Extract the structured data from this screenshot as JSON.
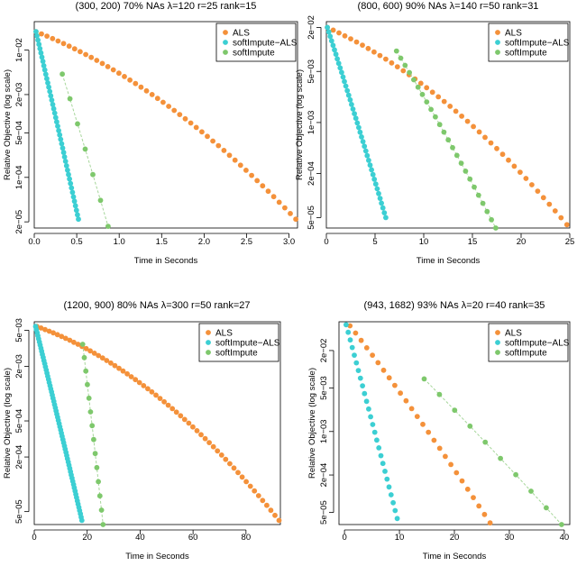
{
  "colors": {
    "ALS": "#f4913a",
    "softImpute-ALS": "#3ccfd3",
    "softImpute": "#7ec86c",
    "softImpute_line": "#a6d69a"
  },
  "chart_data": [
    {
      "type": "scatter",
      "title": "(300, 200)   70% NAs   λ=120   r=25   rank=15",
      "xlabel": "Time in Seconds",
      "ylabel": "Relative Objective (log scale)",
      "xlim": [
        0,
        3.1
      ],
      "ylim": [
        1.6e-05,
        0.028
      ],
      "yscale": "log",
      "xticks": [
        0.0,
        0.5,
        1.0,
        1.5,
        2.0,
        2.5,
        3.0
      ],
      "xtick_labels": [
        "0.0",
        "0.5",
        "1.0",
        "1.5",
        "2.0",
        "2.5",
        "3.0"
      ],
      "yticks": [
        0.01,
        0.002,
        0.0005,
        0.0001,
        2e-05
      ],
      "ytick_labels": [
        "1e−02",
        "2e−03",
        "5e−04",
        "1e−04",
        "2e−05"
      ],
      "legend": [
        "ALS",
        "softImpute−ALS",
        "softImpute"
      ],
      "legend_position": "top-right",
      "series": [
        {
          "name": "ALS",
          "color_key": "ALS",
          "x_start": 0.02,
          "x_end": 3.08,
          "y_start": 0.0195,
          "y_end": 2.2e-05,
          "n": 48,
          "shape": 0.55
        },
        {
          "name": "softImpute−ALS",
          "color_key": "softImpute-ALS",
          "x_start": 0.02,
          "x_end": 0.52,
          "y_start": 0.0195,
          "y_end": 2.2e-05,
          "n": 44,
          "shape": 0.97
        },
        {
          "name": "softImpute",
          "color_key": "softImpute",
          "x_start": 0.33,
          "x_end": 0.87,
          "y_start": 0.0042,
          "y_end": 1.7e-05,
          "n": 7,
          "shape": 0.97,
          "line": true
        }
      ]
    },
    {
      "type": "scatter",
      "title": "(800, 600)   90% NAs   λ=140   r=50   rank=31",
      "xlabel": "Time in Seconds",
      "ylabel": "Relative Objective (log scale)",
      "xlim": [
        0,
        25
      ],
      "ylim": [
        3.6e-05,
        0.024
      ],
      "yscale": "log",
      "xticks": [
        0,
        5,
        10,
        15,
        20,
        25
      ],
      "xtick_labels": [
        "0",
        "5",
        "10",
        "15",
        "20",
        "25"
      ],
      "yticks": [
        0.02,
        0.005,
        0.001,
        0.0002,
        5e-05
      ],
      "ytick_labels": [
        "2e−02",
        "5e−03",
        "1e−03",
        "2e−04",
        "5e−05"
      ],
      "legend": [
        "ALS",
        "softImpute−ALS",
        "softImpute"
      ],
      "legend_position": "top-right",
      "series": [
        {
          "name": "ALS",
          "color_key": "ALS",
          "x_start": 0.1,
          "x_end": 24.7,
          "y_start": 0.02,
          "y_end": 4e-05,
          "n": 42,
          "shape": 0.55
        },
        {
          "name": "softImpute−ALS",
          "color_key": "softImpute-ALS",
          "x_start": 0.1,
          "x_end": 6.1,
          "y_start": 0.02,
          "y_end": 5e-05,
          "n": 42,
          "shape": 0.96
        },
        {
          "name": "softImpute",
          "color_key": "softImpute",
          "x_start": 7.2,
          "x_end": 17.4,
          "y_start": 0.0095,
          "y_end": 3.6e-05,
          "n": 24,
          "shape": 0.92,
          "line": true
        }
      ]
    },
    {
      "type": "scatter",
      "title": "(1200, 900)   80% NAs   λ=300   r=50   rank=27",
      "xlabel": "Time in Seconds",
      "ylabel": "Relative Objective (log scale)",
      "xlim": [
        0,
        93
      ],
      "ylim": [
        3.6e-05,
        0.0062
      ],
      "yscale": "log",
      "xticks": [
        0,
        20,
        40,
        60,
        80
      ],
      "xtick_labels": [
        "0",
        "20",
        "40",
        "60",
        "80"
      ],
      "yticks": [
        0.005,
        0.002,
        0.0005,
        0.0002,
        5e-05
      ],
      "ytick_labels": [
        "5e−03",
        "2e−03",
        "5e−04",
        "2e−04",
        "5e−05"
      ],
      "legend": [
        "ALS",
        "softImpute−ALS",
        "softImpute"
      ],
      "legend_position": "top-right",
      "series": [
        {
          "name": "ALS",
          "color_key": "ALS",
          "x_start": 1.0,
          "x_end": 92.5,
          "y_start": 0.0055,
          "y_end": 4e-05,
          "n": 60,
          "shape": 0.45
        },
        {
          "name": "softImpute−ALS",
          "color_key": "softImpute-ALS",
          "x_start": 0.5,
          "x_end": 18.0,
          "y_start": 0.0055,
          "y_end": 4e-05,
          "n": 62,
          "shape": 0.97
        },
        {
          "name": "softImpute",
          "color_key": "softImpute",
          "x_start": 18.3,
          "x_end": 26.0,
          "y_start": 0.0035,
          "y_end": 3.6e-05,
          "n": 14,
          "shape": 0.96,
          "line": true
        }
      ]
    },
    {
      "type": "scatter",
      "title": "(943, 1682)   93% NAs   λ=20   r=40   rank=35",
      "xlabel": "Time in Seconds",
      "ylabel": "Relative Objective (log scale)",
      "xlim": [
        -1,
        41
      ],
      "ylim": [
        3.2e-05,
        0.058
      ],
      "yscale": "log",
      "xticks": [
        0,
        10,
        20,
        30,
        40
      ],
      "xtick_labels": [
        "0",
        "10",
        "20",
        "30",
        "40"
      ],
      "yticks": [
        0.02,
        0.005,
        0.001,
        0.0002,
        5e-05
      ],
      "ytick_labels": [
        "2e−02",
        "5e−03",
        "1e−03",
        "2e−04",
        "5e−05"
      ],
      "legend": [
        "ALS",
        "softImpute−ALS",
        "softImpute"
      ],
      "legend_position": "top-right",
      "series": [
        {
          "name": "ALS",
          "color_key": "ALS",
          "x_start": 1.0,
          "x_end": 26.5,
          "y_start": 0.05,
          "y_end": 3.4e-05,
          "n": 26,
          "shape": 0.92
        },
        {
          "name": "softImpute−ALS",
          "color_key": "softImpute-ALS",
          "x_start": 0.3,
          "x_end": 9.6,
          "y_start": 0.052,
          "y_end": 4e-05,
          "n": 26,
          "shape": 0.98
        },
        {
          "name": "softImpute",
          "color_key": "softImpute",
          "x_start": 14.5,
          "x_end": 39.5,
          "y_start": 0.007,
          "y_end": 3.2e-05,
          "n": 10,
          "shape": 0.96,
          "line": true
        }
      ]
    }
  ]
}
